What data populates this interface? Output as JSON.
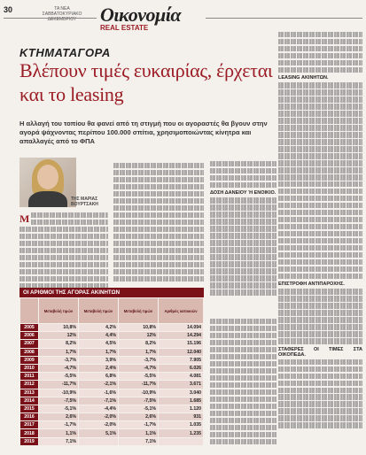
{
  "page_number": "30",
  "masthead": "ΤΑ ΝΕΑ\nΣΑΒΒΑΤΟΚΥΡΙΑΚΟ\nΔΕΚΕΜΒΡΙΟΥ",
  "section": "Οικονομία",
  "subsection": "REAL ESTATE",
  "kicker": "ΚΤΗΜΑΤΑΓΟΡΑ",
  "headline": "Βλέπουν τιμές ευκαιρίας, έρχεται και το leasing",
  "lede": "Η αλλαγή του τοπίου θα φανεί από τη στιγμή που οι αγοραστές θα βγουν στην αγορά ψάχνοντας περίπου 100.000 σπίτια, χρησιμοποιώντας κίνητρα και απαλλαγές από το ΦΠΑ",
  "byline": "ΤΗΣ ΜΑΡΙΑΣ\nΒΟΥΡΤΣΑΚΗ",
  "right_column_subheads": [
    "LEASING ΑΚΙΝΗΤΩΝ."
  ],
  "middle_column_subheads": [
    "ΔΟΣΗ ΔΑΝΕΙΟΥ Ή ΕΝΟΙΚΙΟ."
  ],
  "lower_right_subheads": [
    "ΕΠΙΣΤΡΟΦΗ ΑΝΤΙΠΑΡΟΧΗΣ.",
    "ΣΤΑΘΕΡΕΣ ΟΙ ΤΙΜΕΣ ΣΤΑ ΟΙΚΟΠΕΔΑ."
  ],
  "table": {
    "title": "ΟΙ ΑΡΙΘΜΟΙ ΤΗΣ ΑΓΟΡΑΣ ΑΚΙΝΗΤΩΝ",
    "headers": [
      "",
      "Μεταβολή τιμών",
      "Μεταβολή τιμών",
      "Μεταβολή τιμών",
      "Αριθμός κατοικιών"
    ],
    "rows": [
      [
        "2005",
        "10,8%",
        "4,2%",
        "10,8%",
        "14.094"
      ],
      [
        "2006",
        "12%",
        "4,4%",
        "12%",
        "14.294"
      ],
      [
        "2007",
        "8,2%",
        "4,5%",
        "8,2%",
        "15.196"
      ],
      [
        "2008",
        "1,7%",
        "1,7%",
        "1,7%",
        "12.040"
      ],
      [
        "2009",
        "-3,7%",
        "3,9%",
        "-3,7%",
        "7.905"
      ],
      [
        "2010",
        "-4,7%",
        "2,4%",
        "-4,7%",
        "6.026"
      ],
      [
        "2011",
        "-5,5%",
        "6,8%",
        "-5,5%",
        "4.081"
      ],
      [
        "2012",
        "-11,7%",
        "-2,1%",
        "-11,7%",
        "3.671"
      ],
      [
        "2013",
        "-10,9%",
        "-1,6%",
        "-10,9%",
        "3.040"
      ],
      [
        "2014",
        "-7,5%",
        "-7,1%",
        "-7,5%",
        "1.685"
      ],
      [
        "2015",
        "-5,1%",
        "-4,4%",
        "-5,1%",
        "1.120"
      ],
      [
        "2016",
        "2,6%",
        "-2,0%",
        "2,6%",
        "931"
      ],
      [
        "2017",
        "-1,7%",
        "-2,0%",
        "-1,7%",
        "1.035"
      ],
      [
        "2018",
        "1,1%",
        "5,1%",
        "1,1%",
        "1.235"
      ],
      [
        "2019",
        "7,1%",
        "",
        "7,1%",
        ""
      ]
    ]
  }
}
